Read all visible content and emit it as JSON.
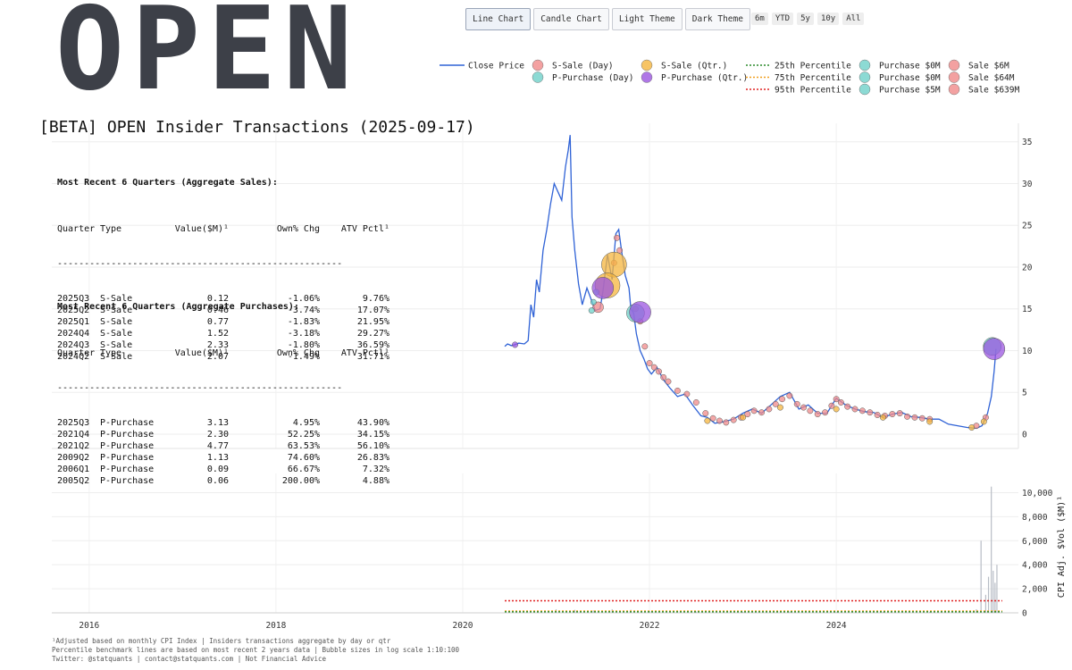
{
  "ticker": "OPEN",
  "controls": {
    "chart_types": [
      "Line Chart",
      "Candle Chart",
      "Light Theme",
      "Dark Theme"
    ],
    "active": "Line Chart",
    "ranges": [
      "6m",
      "YTD",
      "5y",
      "10y",
      "All"
    ]
  },
  "title": "[BETA] OPEN Insider Transactions (2025-09-17)",
  "sales_table": {
    "heading": "Most Recent 6 Quarters (Aggregate Sales):",
    "columns": [
      "Quarter",
      "Type",
      "Value($M)¹",
      "Own% Chg",
      "ATV Pctl¹"
    ],
    "separator": "-----------------------------------------------------",
    "rows": [
      [
        "2025Q3",
        "S-Sale",
        "0.12",
        "-1.06%",
        "9.76%"
      ],
      [
        "2025Q2",
        "S-Sale",
        "0.46",
        "-3.74%",
        "17.07%"
      ],
      [
        "2025Q1",
        "S-Sale",
        "0.77",
        "-1.83%",
        "21.95%"
      ],
      [
        "2024Q4",
        "S-Sale",
        "1.52",
        "-3.18%",
        "29.27%"
      ],
      [
        "2024Q3",
        "S-Sale",
        "2.33",
        "-1.80%",
        "36.59%"
      ],
      [
        "2024Q2",
        "S-Sale",
        "2.07",
        "-1.49%",
        "31.71%"
      ]
    ]
  },
  "purchases_table": {
    "heading": "Most Recent 6 Quarters (Aggregate Purchases):",
    "columns": [
      "Quarter",
      "Type",
      "Value($M)¹",
      "Own% Chg",
      "ATV Pctl¹"
    ],
    "separator": "-----------------------------------------------------",
    "rows": [
      [
        "2025Q3",
        "P-Purchase",
        "3.13",
        "4.95%",
        "43.90%"
      ],
      [
        "2021Q4",
        "P-Purchase",
        "2.30",
        "52.25%",
        "34.15%"
      ],
      [
        "2021Q2",
        "P-Purchase",
        "4.77",
        "63.53%",
        "56.10%"
      ],
      [
        "2009Q2",
        "P-Purchase",
        "1.13",
        "74.60%",
        "26.83%"
      ],
      [
        "2006Q1",
        "P-Purchase",
        "0.09",
        "66.67%",
        "7.32%"
      ],
      [
        "2005Q2",
        "P-Purchase",
        "0.06",
        "200.00%",
        "4.88%"
      ]
    ]
  },
  "footer": [
    "¹Adjusted based on monthly CPI Index | Insiders transactions aggregate by day or qtr",
    "Percentile benchmark lines are based on most recent 2 years data | Bubble sizes in log scale 1:10:100",
    "Twitter: @statquants | contact@statquants.com | Not Financial Advice"
  ],
  "colors": {
    "close": "#2f62d6",
    "s_sale_day": "#f08a8a",
    "s_sale_qtr": "#f5b53d",
    "p_purchase_day": "#6fd1c9",
    "p_purchase_qtr": "#9b55e0",
    "p25": "#2a8a2a",
    "p75": "#f0a020",
    "p95": "#e02020",
    "volume": "#b8bdc6"
  },
  "chart_data": [
    {
      "type": "line",
      "ylim": [
        0,
        37
      ],
      "y_ticks": [
        0,
        5,
        10,
        15,
        20,
        25,
        30,
        35
      ],
      "xlim": [
        2015.6,
        2025.95
      ],
      "legend": {
        "placement": "top-right",
        "entries": [
          {
            "label": "Close Price",
            "kind": "line",
            "color_key": "close"
          },
          {
            "label": "S-Sale (Day)",
            "kind": "dot",
            "color_key": "s_sale_day"
          },
          {
            "label": "P-Purchase (Day)",
            "kind": "dot",
            "color_key": "p_purchase_day"
          },
          {
            "label": "S-Sale (Qtr.)",
            "kind": "dot",
            "color_key": "s_sale_qtr"
          },
          {
            "label": "P-Purchase (Qtr.)",
            "kind": "dot",
            "color_key": "p_purchase_qtr"
          },
          {
            "label": "25th Percentile",
            "kind": "dash",
            "color_key": "p25"
          },
          {
            "label": "75th Percentile",
            "kind": "dash",
            "color_key": "p75"
          },
          {
            "label": "95th Percentile",
            "kind": "dash",
            "color_key": "p95"
          },
          {
            "label": "Purchase $0M",
            "kind": "dot",
            "color_key": "p_purchase_day"
          },
          {
            "label": "Purchase $0M",
            "kind": "dot",
            "color_key": "p_purchase_day"
          },
          {
            "label": "Purchase $5M",
            "kind": "dot",
            "color_key": "p_purchase_day"
          },
          {
            "label": "Sale $6M",
            "kind": "dot",
            "color_key": "s_sale_day"
          },
          {
            "label": "Sale $64M",
            "kind": "dot",
            "color_key": "s_sale_day"
          },
          {
            "label": "Sale $639M",
            "kind": "dot",
            "color_key": "s_sale_day"
          }
        ]
      },
      "series": [
        {
          "name": "Close Price",
          "x": [
            2020.45,
            2020.48,
            2020.52,
            2020.56,
            2020.6,
            2020.66,
            2020.7,
            2020.73,
            2020.76,
            2020.79,
            2020.82,
            2020.86,
            2020.9,
            2020.94,
            2020.98,
            2021.02,
            2021.06,
            2021.1,
            2021.13,
            2021.15,
            2021.17,
            2021.2,
            2021.24,
            2021.28,
            2021.33,
            2021.38,
            2021.42,
            2021.47,
            2021.5,
            2021.55,
            2021.6,
            2021.64,
            2021.67,
            2021.7,
            2021.74,
            2021.78,
            2021.8,
            2021.83,
            2021.86,
            2021.9,
            2021.94,
            2021.98,
            2022.02,
            2022.08,
            2022.15,
            2022.22,
            2022.3,
            2022.38,
            2022.46,
            2022.55,
            2022.62,
            2022.7,
            2022.8,
            2022.9,
            2023.0,
            2023.1,
            2023.2,
            2023.3,
            2023.4,
            2023.5,
            2023.6,
            2023.7,
            2023.8,
            2023.9,
            2024.0,
            2024.1,
            2024.2,
            2024.3,
            2024.4,
            2024.5,
            2024.6,
            2024.7,
            2024.8,
            2024.9,
            2025.0,
            2025.1,
            2025.2,
            2025.3,
            2025.4,
            2025.5,
            2025.56,
            2025.62,
            2025.66,
            2025.69,
            2025.71
          ],
          "y": [
            10.5,
            10.8,
            10.6,
            10.7,
            10.9,
            10.8,
            11.2,
            15.5,
            14.0,
            18.5,
            17.0,
            22.0,
            24.5,
            27.5,
            30.0,
            29.0,
            28.0,
            32.0,
            34.0,
            35.8,
            26.0,
            22.0,
            18.0,
            15.5,
            17.5,
            16.0,
            14.8,
            15.0,
            17.0,
            21.5,
            18.5,
            24.0,
            24.5,
            22.0,
            19.0,
            17.5,
            15.0,
            14.5,
            12.0,
            10.0,
            9.0,
            7.8,
            7.2,
            8.0,
            6.5,
            5.5,
            4.5,
            4.8,
            3.5,
            2.2,
            2.0,
            1.3,
            1.5,
            1.8,
            2.5,
            3.0,
            2.5,
            3.5,
            4.5,
            5.0,
            3.0,
            3.5,
            2.5,
            2.5,
            4.3,
            3.5,
            3.0,
            2.7,
            2.6,
            2.0,
            2.4,
            2.6,
            2.1,
            2.0,
            1.8,
            1.8,
            1.2,
            1.0,
            0.8,
            0.7,
            1.0,
            2.5,
            4.5,
            7.5,
            10.2
          ]
        }
      ],
      "markers": {
        "s_sale_day": [
          [
            2021.85,
            15.0
          ],
          [
            2021.9,
            13.5
          ],
          [
            2021.95,
            10.5
          ],
          [
            2022.0,
            8.5
          ],
          [
            2022.05,
            8.0
          ],
          [
            2022.1,
            7.5
          ],
          [
            2022.15,
            6.8
          ],
          [
            2022.2,
            6.3
          ],
          [
            2022.3,
            5.2
          ],
          [
            2022.4,
            4.8
          ],
          [
            2022.5,
            3.8
          ],
          [
            2022.6,
            2.5
          ],
          [
            2022.68,
            1.9
          ],
          [
            2022.75,
            1.6
          ],
          [
            2022.82,
            1.4
          ],
          [
            2022.9,
            1.7
          ],
          [
            2022.98,
            2.0
          ],
          [
            2023.05,
            2.4
          ],
          [
            2023.12,
            2.8
          ],
          [
            2023.2,
            2.6
          ],
          [
            2023.28,
            3.0
          ],
          [
            2023.35,
            3.6
          ],
          [
            2023.42,
            4.2
          ],
          [
            2023.5,
            4.6
          ],
          [
            2023.58,
            3.6
          ],
          [
            2023.65,
            3.2
          ],
          [
            2023.72,
            2.8
          ],
          [
            2023.8,
            2.4
          ],
          [
            2023.88,
            2.6
          ],
          [
            2023.95,
            3.4
          ],
          [
            2024.0,
            4.2
          ],
          [
            2024.05,
            3.8
          ],
          [
            2024.12,
            3.3
          ],
          [
            2024.2,
            3.0
          ],
          [
            2024.28,
            2.8
          ],
          [
            2024.36,
            2.6
          ],
          [
            2024.44,
            2.3
          ],
          [
            2024.52,
            2.2
          ],
          [
            2024.6,
            2.4
          ],
          [
            2024.68,
            2.5
          ],
          [
            2024.76,
            2.1
          ],
          [
            2024.84,
            2.0
          ],
          [
            2024.92,
            1.9
          ],
          [
            2025.0,
            1.8
          ],
          [
            2025.5,
            1.0
          ],
          [
            2025.6,
            2.0
          ],
          [
            2021.65,
            23.5
          ],
          [
            2021.68,
            22.0
          ],
          [
            2021.62,
            20.5
          ],
          [
            2021.45,
            15.2
          ]
        ],
        "s_sale_qtr": [
          [
            2021.62,
            20.3
          ],
          [
            2021.55,
            17.8
          ],
          [
            2022.62,
            1.6
          ],
          [
            2023.0,
            2.0
          ],
          [
            2023.4,
            3.2
          ],
          [
            2024.0,
            3.0
          ],
          [
            2024.5,
            2.0
          ],
          [
            2025.0,
            1.5
          ],
          [
            2025.45,
            0.8
          ],
          [
            2025.58,
            1.5
          ]
        ],
        "p_purchase_day": [
          [
            2021.38,
            14.8
          ],
          [
            2021.4,
            15.8
          ],
          [
            2021.43,
            17.0
          ],
          [
            2021.85,
            14.5
          ],
          [
            2025.67,
            10.5
          ]
        ],
        "p_purchase_qtr": [
          [
            2020.56,
            10.7
          ],
          [
            2021.5,
            17.5
          ],
          [
            2021.9,
            14.6
          ],
          [
            2025.69,
            10.2
          ]
        ],
        "sizes_note": "large bubbles: S-Sale Qtr 2021.62 (20.3), S-Sale Day 2021.55 (17.8), P-Purchase Qtr 2021.5 (17.5), P-Purchase Day 2021.85 (14.5), P-Purchase Qtr 2025.69 (10.2)"
      }
    },
    {
      "type": "bar",
      "ylabel": "CPI Adj. $Vol ($M)¹",
      "ylim": [
        0,
        11000
      ],
      "y_ticks": [
        0,
        2000,
        4000,
        6000,
        8000,
        10000
      ],
      "y_tick_labels": [
        "0",
        "2,000",
        "4,000",
        "6,000",
        "8,000",
        "10,000"
      ],
      "x_ticks": [
        2016,
        2018,
        2020,
        2022,
        2024
      ],
      "x_tick_labels": [
        "2016",
        "2018",
        "2020",
        "2022",
        "2024"
      ],
      "xlim": [
        2015.6,
        2025.95
      ],
      "percentile_lines": {
        "p25": 80,
        "p75": 150,
        "p95": 1000,
        "x_start": 2020.45
      },
      "x": [
        2020.8,
        2021.0,
        2021.2,
        2021.4,
        2021.6,
        2021.8,
        2022.0,
        2022.5,
        2023.0,
        2023.5,
        2024.0,
        2024.5,
        2025.0,
        2025.5,
        2025.55,
        2025.6,
        2025.63,
        2025.66,
        2025.68,
        2025.7,
        2025.72
      ],
      "values": [
        200,
        300,
        250,
        200,
        300,
        250,
        150,
        100,
        80,
        100,
        90,
        80,
        80,
        300,
        6000,
        1500,
        3000,
        10500,
        3500,
        2500,
        4000
      ]
    }
  ]
}
